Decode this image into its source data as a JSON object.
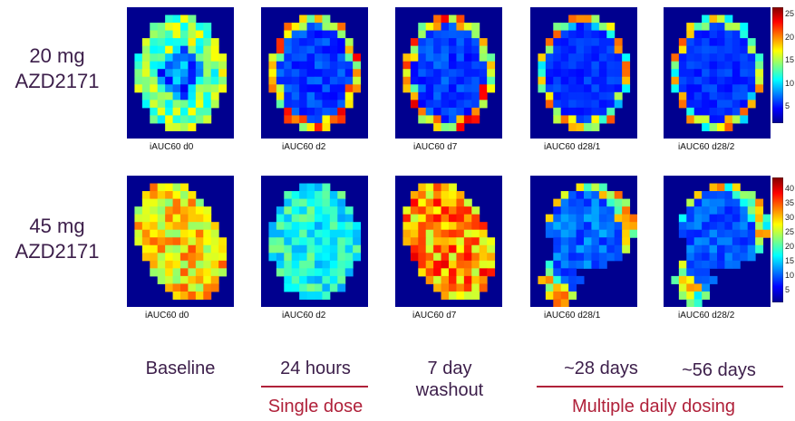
{
  "rows": [
    {
      "dose": "20 mg",
      "drug": "AZD2171",
      "panels": [
        {
          "caption": "iAUC60 d0",
          "pattern": "baseline20"
        },
        {
          "caption": "iAUC60 d2",
          "pattern": "ring"
        },
        {
          "caption": "iAUC60 d7",
          "pattern": "ring"
        },
        {
          "caption": "iAUC60 d28/1",
          "pattern": "ringlow"
        },
        {
          "caption": "iAUC60 d28/2",
          "pattern": "ringlow"
        }
      ],
      "colorbar_ticks": [
        "25",
        "20",
        "15",
        "10",
        "5"
      ]
    },
    {
      "dose": "45 mg",
      "drug": "AZD2171",
      "panels": [
        {
          "caption": "iAUC60 d0",
          "pattern": "warm"
        },
        {
          "caption": "iAUC60 d2",
          "pattern": "cool"
        },
        {
          "caption": "iAUC60 d7",
          "pattern": "warm2"
        },
        {
          "caption": "iAUC60 d28/1",
          "pattern": "blob"
        },
        {
          "caption": "iAUC60 d28/2",
          "pattern": "blob2"
        }
      ],
      "colorbar_ticks": [
        "40",
        "35",
        "30",
        "25",
        "20",
        "15",
        "10",
        "5"
      ]
    }
  ],
  "timepoints": [
    "Baseline",
    "24 hours",
    "7 day washout",
    "~28 days",
    "~56 days"
  ],
  "timepoint_lines": [
    [
      "Baseline"
    ],
    [
      "24 hours"
    ],
    [
      "7 day",
      "washout"
    ],
    [
      "~28 days"
    ],
    [
      "~56 days"
    ]
  ],
  "groups": {
    "single": "Single dose",
    "multiple": "Multiple daily dosing"
  },
  "colors": {
    "background_map": "#00008f",
    "label_text": "#3c1e4a",
    "group_accent": "#b0213a"
  }
}
